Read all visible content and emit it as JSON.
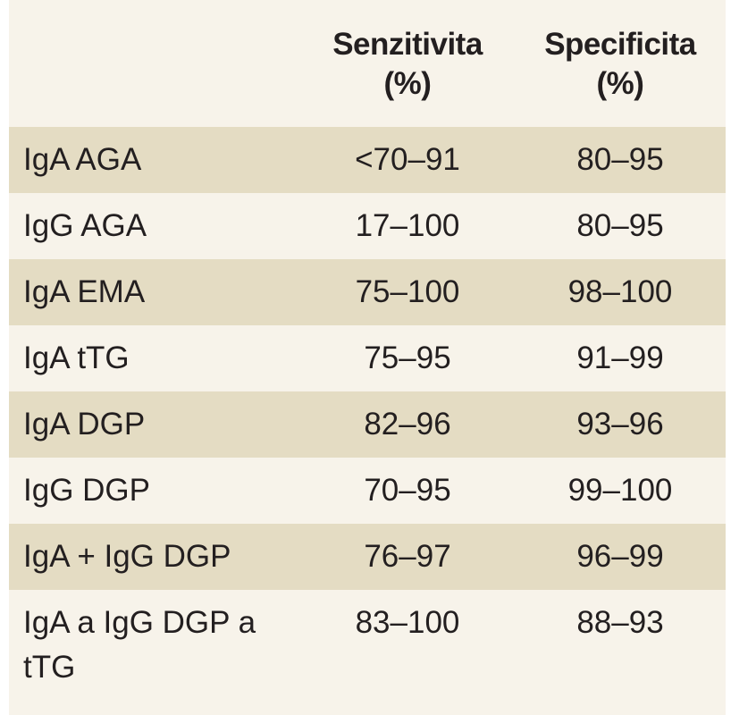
{
  "table": {
    "headers": {
      "sensitivity_line1": "Senzitivita",
      "sensitivity_line2": "(%)",
      "specificity_line1": "Specificita",
      "specificity_line2": "(%)"
    },
    "rows": [
      {
        "test": "IgA AGA",
        "sensitivity": "<70–91",
        "specificity": "80–95"
      },
      {
        "test": "IgG AGA",
        "sensitivity": "17–100",
        "specificity": "80–95"
      },
      {
        "test": "IgA EMA",
        "sensitivity": "75–100",
        "specificity": "98–100"
      },
      {
        "test": "IgA tTG",
        "sensitivity": "75–95",
        "specificity": "91–99"
      },
      {
        "test": "IgA DGP",
        "sensitivity": "82–96",
        "specificity": "93–96"
      },
      {
        "test": "IgG DGP",
        "sensitivity": "70–95",
        "specificity": "99–100"
      },
      {
        "test": "IgA + IgG DGP",
        "sensitivity": "76–97",
        "specificity": "96–99"
      },
      {
        "test": "IgA a IgG DGP a tTG",
        "sensitivity": "83–100",
        "specificity": "88–93"
      }
    ]
  },
  "colors": {
    "shaded_row": "#e4dcc3",
    "plain_row": "#f7f3ea",
    "text": "#231f20"
  }
}
